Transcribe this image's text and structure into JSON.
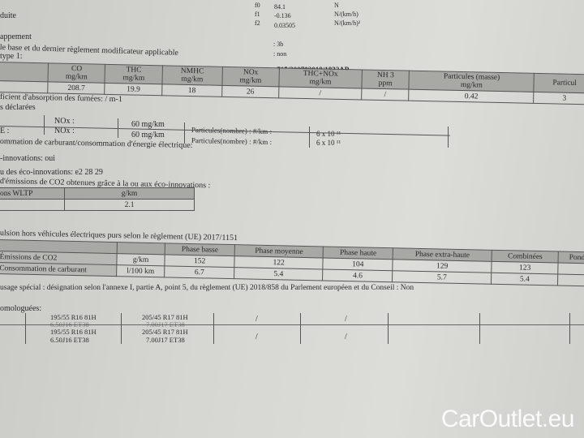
{
  "header": {
    "line0": "duite",
    "f0_label": "f0",
    "f0_value": "84.1",
    "f0_unit": "N",
    "f1_label": "f1",
    "f1_value": "-0.136",
    "f1_unit": "N/(km/h)",
    "f2_label": "f2",
    "f2_value": "0.03505",
    "f2_unit": "N/(km/h)²",
    "heading1": "appement",
    "heading2": "le base et du dernier règlement modificateur applicable",
    "heading3": "type 1:",
    "val_3b": ": 3b",
    "val_non": ": non",
    "regulation": ": 715/2007*2018/1832AP"
  },
  "type1": {
    "headers": [
      "",
      "CO\nmg/km",
      "THC\nmg/km",
      "NMHC\nmg/km",
      "NOx\nmg/km",
      "THC+NOx\nmg/km",
      "NH 3\nppm",
      "Particules (masse)\nmg/km",
      "Particul"
    ],
    "values": [
      "",
      "208.7",
      "19.9",
      "18",
      "26",
      "/",
      "/",
      "0.42",
      "3"
    ]
  },
  "smoke": "ficient d'absorption des fumées: / m-1",
  "declared": "s déclarées",
  "limits": {
    "row1": {
      "a": "",
      "b": "NOx :",
      "c": "60 mg/km"
    },
    "row2": {
      "a": "E   :",
      "b": "NOx :",
      "c": "60 mg/km",
      "d": "Particules(nombre) : #/km :",
      "e": "6 x 10 ¹¹"
    },
    "row1_d": "Particules(nombre) : #/km :",
    "row1_e": "6 x 10 ¹¹"
  },
  "consumption_title": "ommation de carburant/consommation d'énergie électrique:",
  "eco": {
    "line1": "-innovations: oui",
    "line2": "u des éco-innovations: e2 28 29",
    "line3": "d'émissions de CO2 obtenues grâce à la ou aux éco-innovations :",
    "col1": "ons WLTP",
    "col2": "g/km",
    "value": "2.1"
  },
  "wltp": {
    "title": "ulsion hors véhicules électriques purs selon le règlement (UE) 2017/1151",
    "headers": [
      "",
      "",
      "Phase basse",
      "Phase moyenne",
      "Phase haute",
      "Phase extra-haute",
      "Combinées",
      "Pond"
    ],
    "rows": [
      [
        "Émissions de CO2",
        "g/km",
        "152",
        "122",
        "104",
        "129",
        "123",
        ""
      ],
      [
        "Consommation de carburant",
        "l/100 km",
        "6.7",
        "5.4",
        "4.6",
        "5.7",
        "5.4",
        ""
      ]
    ]
  },
  "special_use": "usage spécial : désignation selon l'annexe I, partie A, point 5, du règlement (UE) 2018/858 du Parlement européen et du Conseil : Non",
  "tyres": {
    "title": "omologuées:",
    "rows": [
      [
        "195/55 R16 81H",
        "6.50J16 ET38",
        "205/45 R17 81H",
        "7.00J17 ET38",
        "/",
        "/"
      ],
      [
        "195/55 R16 81H",
        "6.50J16 ET38",
        "205/45 R17 81H",
        "7.00J17 ET38",
        "/",
        "/"
      ]
    ]
  },
  "watermark": "CarOutlet.eu"
}
